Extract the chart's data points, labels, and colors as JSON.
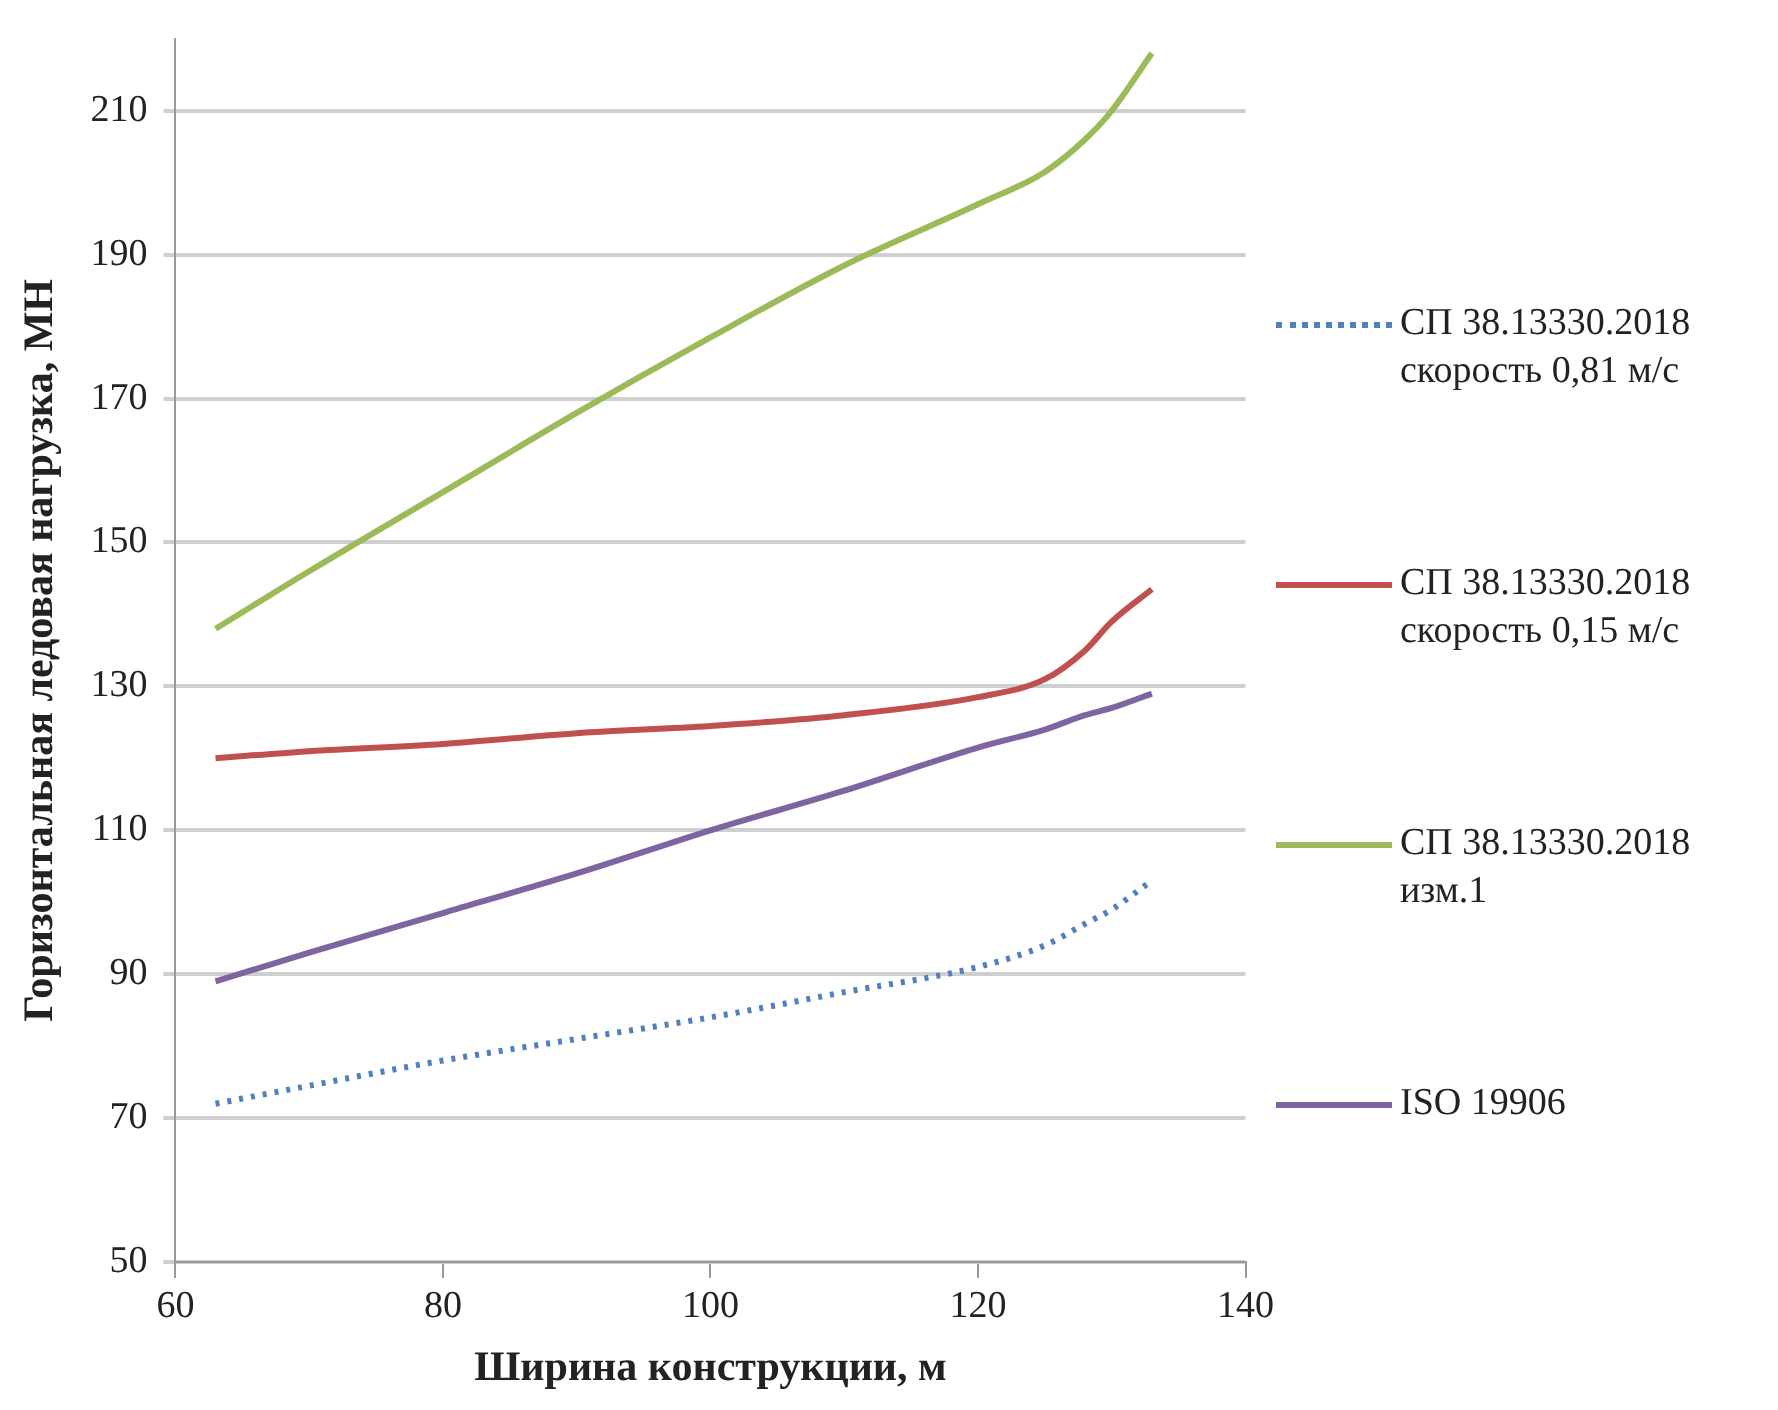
{
  "chart_data": {
    "type": "line",
    "xlabel": "Ширина конструкции, м",
    "ylabel": "Горизонтальная ледовая нагрузка, МН",
    "x": [
      63,
      70,
      80,
      90,
      100,
      110,
      120,
      125,
      128,
      130,
      133
    ],
    "series": [
      {
        "name": "СП 38.13330.2018 скорость 0,81 м/с",
        "color": "#4f81bd",
        "line_style": "dotted",
        "values": [
          72,
          74.5,
          78,
          81,
          84,
          87.5,
          91,
          94,
          97,
          99,
          103
        ]
      },
      {
        "name": "СП 38.13330.2018 скорость 0,15  м/с",
        "color": "#c0504d",
        "values": [
          120,
          121,
          122,
          123.5,
          124.5,
          126,
          128.5,
          131,
          135,
          139,
          143.5
        ]
      },
      {
        "name": "СП 38.13330.2018 изм.1",
        "color": "#9bbb59",
        "values": [
          138,
          146,
          157,
          168,
          178.5,
          188.5,
          197,
          201.5,
          206,
          210,
          218
        ]
      },
      {
        "name": "ISO 19906",
        "color": "#8064a2",
        "values": [
          89,
          93,
          98.5,
          104,
          110,
          115.5,
          121.5,
          124,
          126,
          127,
          129
        ]
      }
    ],
    "xlim": [
      60,
      140
    ],
    "xticks": [
      60,
      80,
      100,
      120,
      140
    ],
    "ylim": [
      50,
      220
    ],
    "yticks": [
      50,
      70,
      90,
      110,
      130,
      150,
      170,
      190,
      210
    ],
    "grid": "y",
    "legend": "right",
    "marker": "none",
    "line_style": "solid"
  }
}
